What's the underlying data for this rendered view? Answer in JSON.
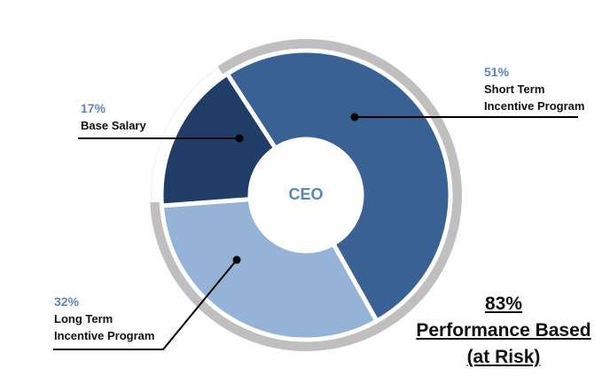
{
  "chart_data": {
    "type": "pie",
    "variant": "donut",
    "title": "",
    "center_label": "CEO",
    "categories": [
      "Short Term Incentive Program",
      "Long Term Incentive Program",
      "Base Salary"
    ],
    "values": [
      51,
      32,
      17
    ],
    "unit": "%",
    "colors": [
      "#3a6194",
      "#95b3d7",
      "#1f3d66"
    ],
    "highlight_ring": {
      "covers": [
        "Short Term Incentive Program",
        "Long Term Incentive Program"
      ],
      "total": 83,
      "color": "#bfbfbf",
      "label": "83% Performance Based (at Risk)"
    },
    "legend_position": "none (leader-line labels)"
  },
  "labels": {
    "stip": {
      "pct": "51%",
      "line1": "Short Term",
      "line2": "Incentive Program"
    },
    "base": {
      "pct": "17%",
      "line1": "Base Salary"
    },
    "ltip": {
      "pct": "32%",
      "line1": "Long Term",
      "line2": "Incentive Program"
    }
  },
  "center": {
    "label": "CEO"
  },
  "summary": {
    "pct": "83%",
    "line1": "Performance Based",
    "line2": "(at Risk)"
  },
  "colors": {
    "stip": "#3a6194",
    "ltip": "#95b3d7",
    "base": "#1f3d66",
    "ring": "#bfbfbf",
    "accent_text": "#5b86bf"
  }
}
